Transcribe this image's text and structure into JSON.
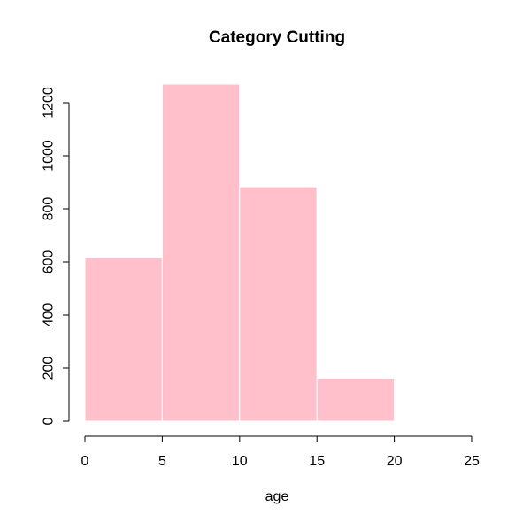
{
  "chart_data": {
    "type": "bar",
    "title": "Category Cutting",
    "xlabel": "age",
    "ylabel": "",
    "bins": [
      {
        "from": 0,
        "to": 5,
        "value": 615
      },
      {
        "from": 5,
        "to": 10,
        "value": 1270
      },
      {
        "from": 10,
        "to": 15,
        "value": 883
      },
      {
        "from": 15,
        "to": 20,
        "value": 162
      }
    ],
    "xlim": [
      0,
      25
    ],
    "ylim": [
      0,
      1200
    ],
    "x_ticks": [
      "0",
      "5",
      "10",
      "15",
      "20",
      "25"
    ],
    "y_ticks": [
      "0",
      "200",
      "400",
      "600",
      "800",
      "1000",
      "1200"
    ],
    "bar_color": "#FFC0CB",
    "bar_border_color": "#FFFFFF",
    "grid": false
  }
}
